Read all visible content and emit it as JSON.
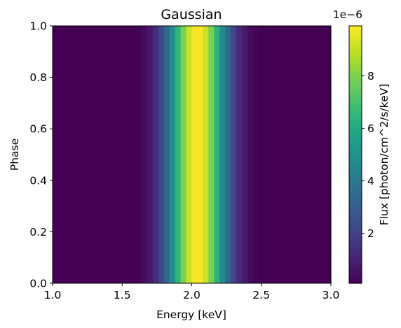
{
  "chart_data": {
    "type": "heatmap",
    "title": "Gaussian",
    "xlabel": "Energy [keV]",
    "ylabel": "Phase",
    "xlim": [
      1.0,
      3.0
    ],
    "ylim": [
      0.0,
      1.0
    ],
    "x_ticks": [
      "1.0",
      "1.5",
      "2.0",
      "2.5",
      "3.0"
    ],
    "y_ticks": [
      "0.0",
      "0.2",
      "0.4",
      "0.6",
      "0.8",
      "1.0"
    ],
    "x_bin_width": 0.04,
    "model": {
      "center_kev": 2.04,
      "sigma_kev": 0.15,
      "peak_flux": 9.9e-06
    },
    "colorbar": {
      "label": "Flux [photon/cm^2/s/keV]",
      "offset_label": "1e−6",
      "ticks": [
        "2",
        "4",
        "6",
        "8"
      ],
      "tick_values": [
        2,
        4,
        6,
        8
      ],
      "range": [
        0.1,
        9.9
      ],
      "colormap": "viridis"
    },
    "grid": false
  }
}
